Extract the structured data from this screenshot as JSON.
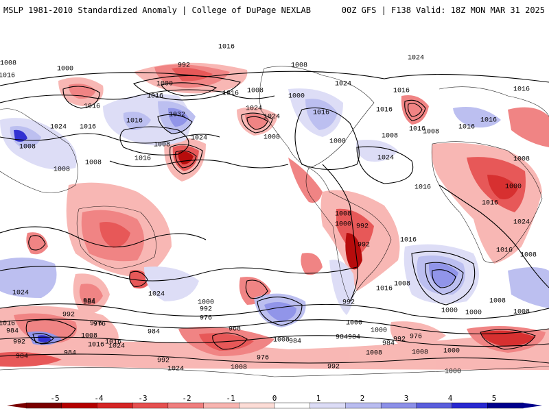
{
  "header": {
    "left_title": "MSLP 1981-2010 Standardized Anomaly | College of DuPage NEXLAB",
    "right_title": "00Z GFS | F138 Valid: 18Z MON MAR 31 2025"
  },
  "colorbar": {
    "ticks": [
      "-5",
      "-4",
      "-3",
      "-2",
      "-1",
      "0",
      "1",
      "2",
      "3",
      "4",
      "5"
    ],
    "colors": [
      "#7a0000",
      "#b40000",
      "#d52525",
      "#e65050",
      "#f07e7e",
      "#f8b4b0",
      "#fcdcd6",
      "#ffffff",
      "#dcdcf6",
      "#b9bcf0",
      "#8c90e8",
      "#5a5edc",
      "#2828d0",
      "#00008c"
    ]
  },
  "contour_labels": [
    "1016",
    "1008",
    "1000",
    "992",
    "1024",
    "1000",
    "1016",
    "1008",
    "1024",
    "1016",
    "1016",
    "1008",
    "1016",
    "1000",
    "1024",
    "1016",
    "1032",
    "1024",
    "1016",
    "1016",
    "1008",
    "1016",
    "1008",
    "1008",
    "1024",
    "1016",
    "1008",
    "1024",
    "1016",
    "1008",
    "1008",
    "1008",
    "1016",
    "1008",
    "1016",
    "1016",
    "1016",
    "1024",
    "1008",
    "1000",
    "1016",
    "1024",
    "1016",
    "992",
    "1008",
    "1000",
    "992",
    "976",
    "1000",
    "984",
    "992",
    "976",
    "968",
    "984",
    "984",
    "992",
    "1016",
    "1024",
    "984",
    "1016",
    "1008",
    "1000",
    "1016",
    "1008",
    "1008",
    "1000",
    "1008",
    "1016",
    "1024",
    "992",
    "984",
    "1008",
    "984",
    "976",
    "992",
    "984",
    "976",
    "1000",
    "1000",
    "992",
    "1008",
    "984",
    "1016",
    "1024",
    "1008",
    "1000",
    "992",
    "1024",
    "984",
    "1016",
    "1008",
    "976",
    "992",
    "984",
    "1008",
    "1000"
  ]
}
